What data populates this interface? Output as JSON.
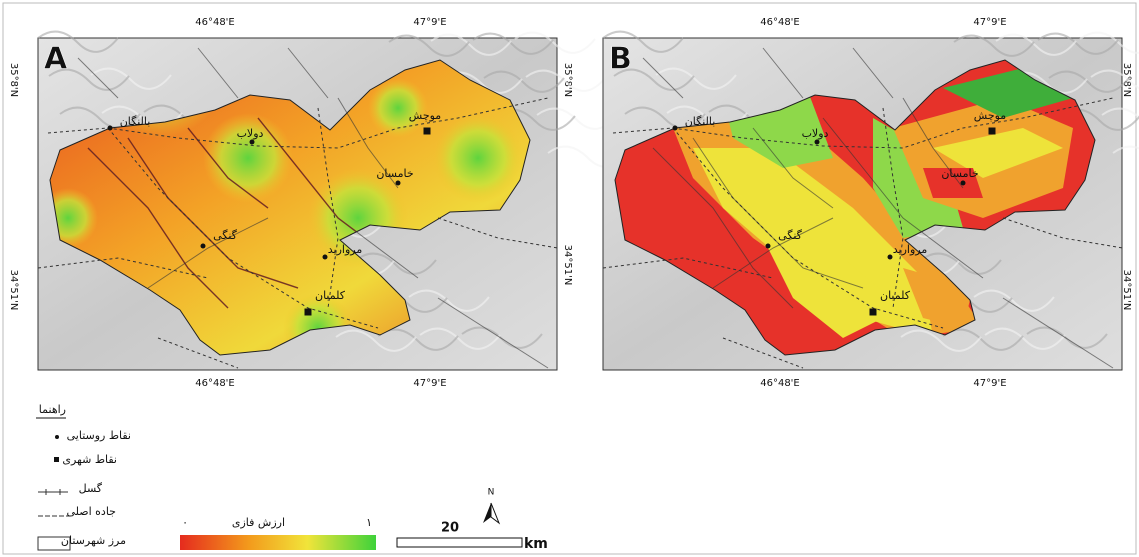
{
  "panels": [
    {
      "label": "A",
      "cities": [
        "بالنگان",
        "دولاب",
        "موچش",
        "خامسان",
        "گنگی",
        "مرواريد",
        "کلمبان"
      ]
    },
    {
      "label": "B",
      "cities": [
        "بالنگان",
        "دولاب",
        "موچش",
        "خامسان",
        "گنگی",
        "مرواريد",
        "کلمبان"
      ]
    }
  ],
  "coordinates": {
    "lon": [
      "46°48'E",
      "47°9'E"
    ],
    "lat": [
      "35°8'N",
      "34°51'N"
    ]
  },
  "legend": {
    "title": "راهنما",
    "items": [
      "نقاط روستایی",
      "نقاط شهری",
      "گسل",
      "جاده اصلی",
      "مرز شهرستان"
    ],
    "ramp": {
      "title": "ارزش فازی",
      "min": "۰",
      "max": "۱"
    }
  },
  "scale_bar": {
    "distance": "20",
    "unit": "km"
  },
  "north": "N"
}
